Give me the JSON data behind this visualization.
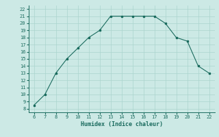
{
  "x": [
    6,
    7,
    8,
    9,
    10,
    11,
    12,
    13,
    14,
    15,
    16,
    17,
    18,
    19,
    20,
    21,
    22
  ],
  "y": [
    8.5,
    10,
    13,
    15,
    16.5,
    18,
    19,
    21,
    21,
    21,
    21,
    21,
    20,
    18,
    17.5,
    14,
    13
  ],
  "xlim": [
    5.5,
    22.5
  ],
  "ylim": [
    7.5,
    22.5
  ],
  "xticks": [
    6,
    7,
    8,
    9,
    10,
    11,
    12,
    13,
    14,
    15,
    16,
    17,
    18,
    19,
    20,
    21,
    22
  ],
  "yticks": [
    8,
    9,
    10,
    11,
    12,
    13,
    14,
    15,
    16,
    17,
    18,
    19,
    20,
    21,
    22
  ],
  "xlabel": "Humidex (Indice chaleur)",
  "line_color": "#1a6b5e",
  "marker": "s",
  "marker_size": 2,
  "bg_color": "#cce9e5",
  "grid_color": "#aad4ce",
  "tick_color": "#1a6b5e",
  "label_color": "#1a6b5e"
}
